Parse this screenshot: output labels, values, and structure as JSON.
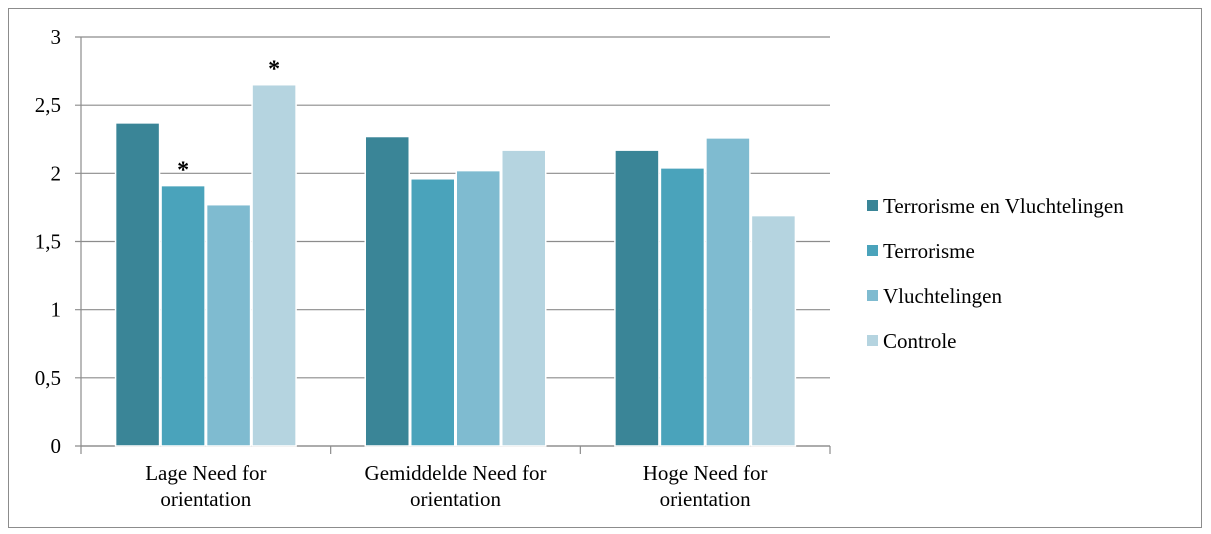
{
  "chart_data": {
    "type": "bar",
    "title": "",
    "xlabel": "",
    "ylabel": "",
    "ylim": [
      0,
      3
    ],
    "yticks": [
      "0",
      "0,5",
      "1",
      "1,5",
      "2",
      "2,5",
      "3"
    ],
    "ytick_values": [
      0,
      0.5,
      1,
      1.5,
      2,
      2.5,
      3
    ],
    "grid": true,
    "legend_position": "right",
    "categories": [
      [
        "Lage Need for",
        "orientation"
      ],
      [
        "Gemiddelde Need for",
        "orientation"
      ],
      [
        "Hoge Need for",
        "orientation"
      ]
    ],
    "series": [
      {
        "name": "Terrorisme en Vluchtelingen",
        "color": "#3a8597",
        "values": [
          2.37,
          2.27,
          2.17
        ],
        "annotations": [
          "",
          "",
          ""
        ]
      },
      {
        "name": "Terrorisme",
        "color": "#4aa3bb",
        "values": [
          1.91,
          1.96,
          2.04
        ],
        "annotations": [
          "*",
          "",
          ""
        ]
      },
      {
        "name": "Vluchtelingen",
        "color": "#7fbbd0",
        "values": [
          1.77,
          2.02,
          2.26
        ],
        "annotations": [
          "",
          "",
          ""
        ]
      },
      {
        "name": "Controle",
        "color": "#b5d4e0",
        "values": [
          2.65,
          2.17,
          1.69
        ],
        "annotations": [
          "*",
          "",
          ""
        ]
      }
    ]
  }
}
